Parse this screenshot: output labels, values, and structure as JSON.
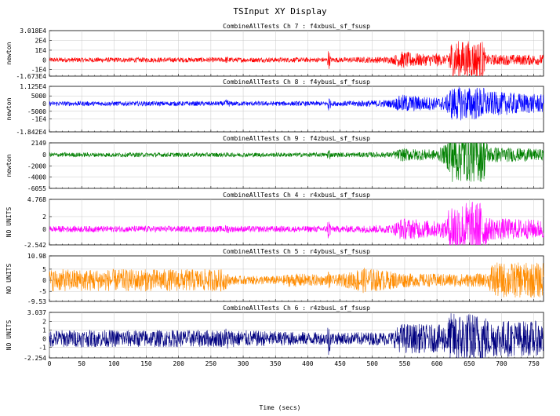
{
  "window_title": "TSInput XY Display",
  "x_axis_label": "Time (secs)",
  "chart_data": {
    "type": "line",
    "x_range": [
      0,
      765
    ],
    "x_ticks": [
      0,
      50,
      100,
      150,
      200,
      250,
      300,
      350,
      400,
      450,
      500,
      550,
      600,
      650,
      700,
      750
    ],
    "grid": true,
    "panels": [
      {
        "title": "CombineAllTests  Ch 7 : f4xbusL_sf_fsusp",
        "ylabel": "newton",
        "color": "#ff0000",
        "y_range": [
          -16730,
          30180
        ],
        "tick_labels": [
          "3.018E4",
          "2E4",
          "1E4",
          "0",
          "-1E4",
          "-1.673E4"
        ],
        "tick_values": [
          30180,
          20000,
          10000,
          0,
          -10000,
          -16730
        ],
        "profile": [
          [
            0,
            2500
          ],
          [
            270,
            2500
          ],
          [
            275,
            4000
          ],
          [
            280,
            2500
          ],
          [
            430,
            2500
          ],
          [
            432,
            12000
          ],
          [
            436,
            2500
          ],
          [
            530,
            3500
          ],
          [
            545,
            9000
          ],
          [
            580,
            6000
          ],
          [
            600,
            7000
          ],
          [
            615,
            4000
          ],
          [
            620,
            20000
          ],
          [
            672,
            20000
          ],
          [
            675,
            5500
          ],
          [
            765,
            5500
          ]
        ]
      },
      {
        "title": "CombineAllTests  Ch 8 : f4ybusL_sf_fsusp",
        "ylabel": "newton",
        "color": "#0000ff",
        "y_range": [
          -18420,
          11250
        ],
        "tick_labels": [
          "1.125E4",
          "5000",
          "0",
          "-5000",
          "-1E4",
          "-1.842E4"
        ],
        "tick_values": [
          11250,
          5000,
          0,
          -5000,
          -10000,
          -18420
        ],
        "profile": [
          [
            0,
            1500
          ],
          [
            270,
            1500
          ],
          [
            275,
            3000
          ],
          [
            280,
            1500
          ],
          [
            430,
            1500
          ],
          [
            432,
            7000
          ],
          [
            436,
            1500
          ],
          [
            530,
            2500
          ],
          [
            545,
            6000
          ],
          [
            600,
            4000
          ],
          [
            615,
            5000
          ],
          [
            620,
            11000
          ],
          [
            672,
            11000
          ],
          [
            680,
            8000
          ],
          [
            765,
            6000
          ]
        ]
      },
      {
        "title": "CombineAllTests  Ch 9 : f4zbusL_sf_fsusp",
        "ylabel": "newton",
        "color": "#008000",
        "y_range": [
          -6055,
          2149
        ],
        "tick_labels": [
          "2149",
          "0",
          "-2000",
          "-4000",
          "-6055"
        ],
        "tick_values": [
          2149,
          0,
          -2000,
          -4000,
          -6055
        ],
        "profile": [
          [
            0,
            400
          ],
          [
            430,
            400
          ],
          [
            432,
            1500
          ],
          [
            436,
            400
          ],
          [
            530,
            500
          ],
          [
            545,
            1200
          ],
          [
            600,
            900
          ],
          [
            615,
            2000
          ],
          [
            620,
            5000
          ],
          [
            672,
            5000
          ],
          [
            680,
            1500
          ],
          [
            765,
            1000
          ]
        ]
      },
      {
        "title": "CombineAllTests  Ch 4 : r4xbusL_sf_fsusp",
        "ylabel": "NO UNITS",
        "color": "#ff00ff",
        "y_range": [
          -2.542,
          4.768
        ],
        "tick_labels": [
          "4.768",
          "2",
          "0",
          "-2.542"
        ],
        "tick_values": [
          4.768,
          2,
          0,
          -2.542
        ],
        "profile": [
          [
            0,
            0.5
          ],
          [
            270,
            0.5
          ],
          [
            275,
            0.8
          ],
          [
            280,
            0.5
          ],
          [
            430,
            0.5
          ],
          [
            432,
            2.5
          ],
          [
            436,
            0.5
          ],
          [
            530,
            0.7
          ],
          [
            545,
            1.8
          ],
          [
            600,
            1.3
          ],
          [
            615,
            1.5
          ],
          [
            620,
            4.5
          ],
          [
            672,
            4.5
          ],
          [
            680,
            1.8
          ],
          [
            765,
            1.5
          ]
        ]
      },
      {
        "title": "CombineAllTests  Ch 5 : r4ybusL_sf_fsusp",
        "ylabel": "NO UNITS",
        "color": "#ff8c00",
        "y_range": [
          -9.53,
          10.98
        ],
        "tick_labels": [
          "10.98",
          "5",
          "0",
          "-5",
          "-9.53"
        ],
        "tick_values": [
          10.98,
          5,
          0,
          -5,
          -9.53
        ],
        "profile": [
          [
            0,
            5
          ],
          [
            270,
            5
          ],
          [
            280,
            2
          ],
          [
            360,
            2
          ],
          [
            370,
            3
          ],
          [
            400,
            3
          ],
          [
            430,
            2
          ],
          [
            432,
            6
          ],
          [
            436,
            2
          ],
          [
            470,
            4
          ],
          [
            480,
            6
          ],
          [
            560,
            3
          ],
          [
            680,
            3
          ],
          [
            685,
            8
          ],
          [
            765,
            8
          ]
        ]
      },
      {
        "title": "CombineAllTests  Ch 6 : r4zbusL_sf_fsusp",
        "ylabel": "NO UNITS",
        "color": "#000080",
        "y_range": [
          -2.254,
          3.037
        ],
        "tick_labels": [
          "3.037",
          "2",
          "1",
          "0",
          "-1",
          "-2.254"
        ],
        "tick_values": [
          3.037,
          2,
          1,
          0,
          -1,
          -2.254
        ],
        "profile": [
          [
            0,
            1.0
          ],
          [
            270,
            1.0
          ],
          [
            275,
            1.5
          ],
          [
            280,
            1.0
          ],
          [
            430,
            0.7
          ],
          [
            432,
            2.5
          ],
          [
            436,
            0.7
          ],
          [
            530,
            0.8
          ],
          [
            545,
            1.8
          ],
          [
            600,
            1.6
          ],
          [
            615,
            1.7
          ],
          [
            620,
            3.0
          ],
          [
            672,
            3.0
          ],
          [
            680,
            2.2
          ],
          [
            765,
            2.0
          ]
        ]
      }
    ]
  }
}
